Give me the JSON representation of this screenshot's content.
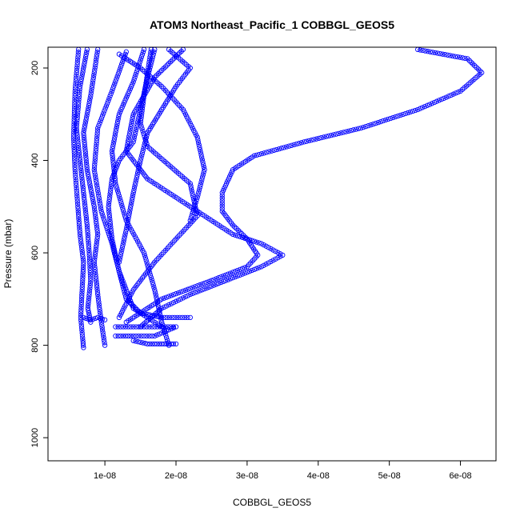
{
  "chart_data": {
    "type": "scatter",
    "title": "ATOM3 Northeast_Pacific_1 COBBGL_GEOS5",
    "xlabel": "COBBGL_GEOS5",
    "ylabel": "Pressure (mbar)",
    "xlim": [
      2e-09,
      6.5e-08
    ],
    "ylim": [
      1050,
      155
    ],
    "y_reversed": true,
    "xticks": [
      1e-08,
      2e-08,
      3e-08,
      4e-08,
      5e-08,
      6e-08
    ],
    "xtick_labels": [
      "1e-08",
      "2e-08",
      "3e-08",
      "4e-08",
      "5e-08",
      "6e-08"
    ],
    "yticks": [
      200,
      400,
      600,
      800,
      1000
    ],
    "ytick_labels": [
      "200",
      "400",
      "600",
      "800",
      "1000"
    ],
    "grid": false,
    "legend": "none",
    "marker": "open-circle",
    "color": "#0000ff",
    "series": [
      {
        "x": [
          6.3e-09,
          5.8e-09,
          5.6e-09,
          5.8e-09,
          6.2e-09,
          6.5e-09,
          7e-09,
          6.8e-09,
          6.6e-09,
          6.9e-09,
          7e-09
        ],
        "y": [
          160,
          250,
          350,
          420,
          500,
          560,
          620,
          680,
          740,
          790,
          805
        ]
      },
      {
        "x": [
          7.5e-09,
          6.5e-09,
          6e-09,
          6.5e-09,
          7e-09,
          7.5e-09,
          7.8e-09,
          8e-09,
          7.6e-09,
          8e-09
        ],
        "y": [
          160,
          240,
          330,
          400,
          470,
          540,
          600,
          660,
          720,
          750
        ]
      },
      {
        "x": [
          9e-09,
          8e-09,
          7e-09,
          7.5e-09,
          8.5e-09,
          9e-09,
          8.5e-09,
          9e-09,
          9.5e-09,
          1e-08
        ],
        "y": [
          160,
          260,
          340,
          420,
          500,
          560,
          620,
          690,
          750,
          800
        ]
      },
      {
        "x": [
          1.3e-08,
          1.1e-08,
          9e-09,
          8.5e-09,
          9.5e-09,
          1.1e-08,
          1.2e-08,
          1.3e-08,
          1.5e-08,
          1.8e-08,
          2.2e-08
        ],
        "y": [
          165,
          250,
          330,
          420,
          510,
          580,
          640,
          700,
          730,
          740,
          740
        ]
      },
      {
        "x": [
          1.55e-08,
          1.4e-08,
          1.2e-08,
          1.1e-08,
          1.15e-08,
          1.3e-08,
          1.55e-08,
          1.7e-08,
          1.8e-08,
          1.9e-08
        ],
        "y": [
          160,
          230,
          300,
          380,
          450,
          530,
          600,
          680,
          750,
          800
        ]
      },
      {
        "x": [
          1.7e-08,
          1.6e-08,
          1.5e-08,
          1.4e-08,
          1.2e-08,
          1.1e-08,
          1.05e-08,
          1.1e-08,
          1.2e-08,
          1.4e-08,
          1.8e-08
        ],
        "y": [
          160,
          220,
          290,
          360,
          400,
          440,
          500,
          570,
          640,
          720,
          760
        ]
      },
      {
        "x": [
          1.9e-08,
          2.2e-08,
          2e-08,
          1.8e-08,
          1.6e-08,
          1.5e-08,
          1.4e-08,
          1.3e-08,
          1.2e-08
        ],
        "y": [
          160,
          200,
          240,
          290,
          340,
          400,
          470,
          550,
          620
        ]
      },
      {
        "x": [
          2.1e-08,
          1.7e-08,
          1.4e-08,
          1.3e-08,
          1.6e-08,
          2e-08,
          2.4e-08,
          2.8e-08,
          3.2e-08,
          3.5e-08,
          3.2e-08,
          2.7e-08,
          2.2e-08,
          1.8e-08,
          1.5e-08
        ],
        "y": [
          160,
          220,
          300,
          380,
          440,
          480,
          520,
          560,
          580,
          605,
          630,
          660,
          690,
          720,
          760
        ]
      },
      {
        "x": [
          5.4e-08,
          6.1e-08,
          6.3e-08,
          6e-08,
          5.4e-08,
          4.6e-08,
          3.8e-08,
          3.1e-08,
          2.8e-08,
          2.65e-08,
          2.65e-08,
          2.8e-08,
          3e-08,
          3.15e-08,
          3e-08,
          2.5e-08,
          1.8e-08,
          1.3e-08
        ],
        "y": [
          160,
          180,
          210,
          250,
          290,
          330,
          360,
          390,
          420,
          470,
          510,
          540,
          570,
          605,
          630,
          660,
          700,
          750
        ]
      },
      {
        "x": [
          1.65e-08,
          1.6e-08,
          1.55e-08,
          1.5e-08,
          1.6e-08,
          1.9e-08,
          2.2e-08,
          2.3e-08,
          2e-08,
          1.7e-08,
          1.4e-08,
          1.2e-08
        ],
        "y": [
          160,
          210,
          260,
          320,
          370,
          410,
          450,
          520,
          570,
          620,
          680,
          740
        ]
      },
      {
        "x": [
          1.2e-08,
          1.3e-08,
          1.5e-08,
          1.8e-08,
          2.1e-08,
          2.3e-08,
          2.4e-08,
          2.3e-08,
          2.2e-08
        ],
        "y": [
          170,
          180,
          200,
          240,
          290,
          350,
          420,
          480,
          530
        ]
      },
      {
        "x": [
          1.15e-08,
          1.4e-08,
          1.7e-08,
          2e-08,
          1.7e-08,
          1.4e-08,
          1.15e-08
        ],
        "y": [
          760,
          760,
          760,
          760,
          780,
          780,
          780
        ]
      },
      {
        "x": [
          1.4e-08,
          1.6e-08,
          1.8e-08,
          2e-08
        ],
        "y": [
          790,
          797,
          797,
          797
        ]
      },
      {
        "x": [
          7e-09,
          8e-09,
          9e-09,
          1e-08
        ],
        "y": [
          740,
          745,
          740,
          745
        ]
      }
    ]
  }
}
